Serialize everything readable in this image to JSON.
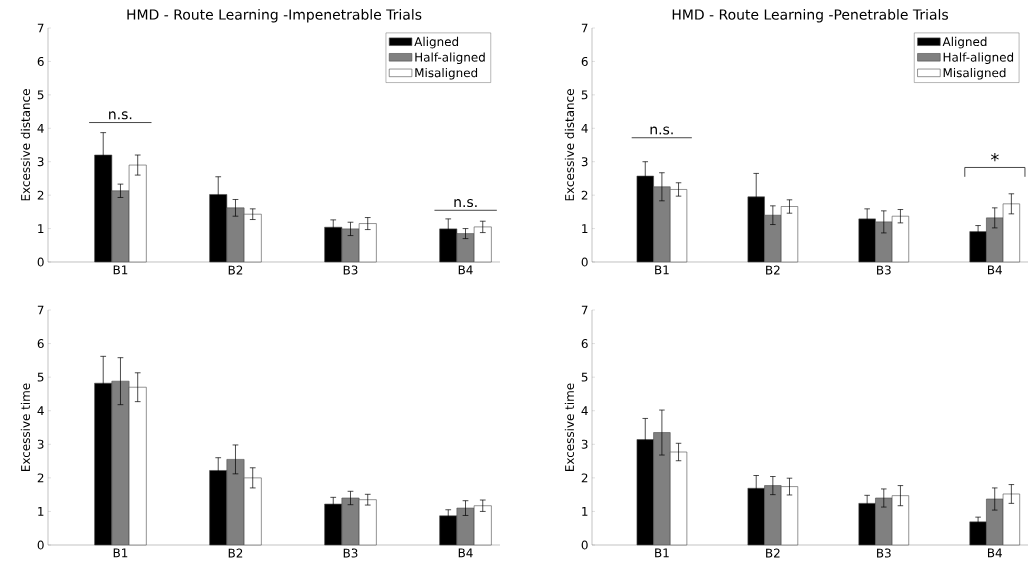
{
  "chart_data": [
    {
      "type": "bar",
      "title": "HMD - Route Learning -Impenetrable Trials",
      "ylabel": "Excessive distance",
      "categories": [
        "B1",
        "B2",
        "B3",
        "B4"
      ],
      "ylim": [
        0,
        7
      ],
      "yticks": [
        0,
        1,
        2,
        3,
        4,
        5,
        6,
        7
      ],
      "legend": "top right",
      "series": [
        {
          "name": "Aligned",
          "color": "#000000",
          "values": [
            3.2,
            2.02,
            1.04,
            0.99
          ],
          "errors": [
            0.67,
            0.53,
            0.22,
            0.3
          ]
        },
        {
          "name": "Half-aligned",
          "color": "#808080",
          "values": [
            2.13,
            1.62,
            0.99,
            0.85
          ],
          "errors": [
            0.2,
            0.25,
            0.2,
            0.15
          ]
        },
        {
          "name": "Misaligned",
          "color": "#ffffff",
          "values": [
            2.9,
            1.43,
            1.15,
            1.05
          ],
          "errors": [
            0.3,
            0.16,
            0.18,
            0.17
          ]
        }
      ],
      "annotations": [
        "n.s.",
        "n.s."
      ]
    },
    {
      "type": "bar",
      "title": "HMD - Route Learning -Penetrable Trials",
      "ylabel": "Excessive distance",
      "categories": [
        "B1",
        "B2",
        "B3",
        "B4"
      ],
      "ylim": [
        0,
        7
      ],
      "yticks": [
        0,
        1,
        2,
        3,
        4,
        5,
        6,
        7
      ],
      "legend": "top right",
      "series": [
        {
          "name": "Aligned",
          "color": "#000000",
          "values": [
            2.57,
            1.95,
            1.29,
            0.91
          ],
          "errors": [
            0.43,
            0.7,
            0.3,
            0.18
          ]
        },
        {
          "name": "Half-aligned",
          "color": "#808080",
          "values": [
            2.25,
            1.4,
            1.2,
            1.32
          ],
          "errors": [
            0.42,
            0.28,
            0.33,
            0.3
          ]
        },
        {
          "name": "Misaligned",
          "color": "#ffffff",
          "values": [
            2.17,
            1.66,
            1.37,
            1.74
          ],
          "errors": [
            0.2,
            0.2,
            0.2,
            0.3
          ]
        }
      ],
      "annotations": [
        "n.s.",
        "*"
      ]
    },
    {
      "type": "bar",
      "ylabel": "Excessive time",
      "categories": [
        "B1",
        "B2",
        "B3",
        "B4"
      ],
      "ylim": [
        0,
        7
      ],
      "yticks": [
        0,
        1,
        2,
        3,
        4,
        5,
        6,
        7
      ],
      "series": [
        {
          "color": "#000000",
          "values": [
            4.82,
            2.22,
            1.22,
            0.87
          ],
          "errors": [
            0.8,
            0.38,
            0.2,
            0.18
          ]
        },
        {
          "color": "#808080",
          "values": [
            4.88,
            2.55,
            1.4,
            1.1
          ],
          "errors": [
            0.7,
            0.43,
            0.2,
            0.22
          ]
        },
        {
          "color": "#ffffff",
          "values": [
            4.7,
            2.0,
            1.35,
            1.17
          ],
          "errors": [
            0.43,
            0.3,
            0.16,
            0.17
          ]
        }
      ]
    },
    {
      "type": "bar",
      "ylabel": "Excessive time",
      "categories": [
        "B1",
        "B2",
        "B3",
        "B4"
      ],
      "ylim": [
        0,
        7
      ],
      "yticks": [
        0,
        1,
        2,
        3,
        4,
        5,
        6,
        7
      ],
      "series": [
        {
          "color": "#000000",
          "values": [
            3.14,
            1.69,
            1.24,
            0.69
          ],
          "errors": [
            0.63,
            0.38,
            0.24,
            0.14
          ]
        },
        {
          "color": "#808080",
          "values": [
            3.35,
            1.77,
            1.4,
            1.37
          ],
          "errors": [
            0.67,
            0.27,
            0.27,
            0.33
          ]
        },
        {
          "color": "#ffffff",
          "values": [
            2.77,
            1.74,
            1.47,
            1.52
          ],
          "errors": [
            0.26,
            0.25,
            0.3,
            0.28
          ]
        }
      ]
    }
  ]
}
